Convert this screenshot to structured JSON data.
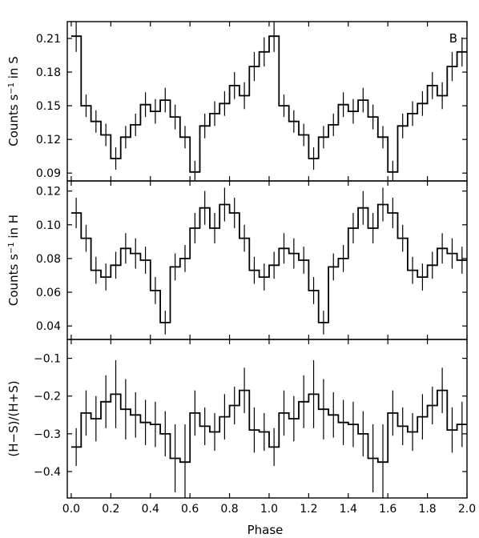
{
  "chart_data": [
    {
      "type": "line",
      "step": "histogram",
      "panel_label": "B",
      "ylabel": "Counts s$^{-1}$ in S",
      "ylabel_parts": [
        "Counts s",
        "−1",
        " in S"
      ],
      "ylim": [
        0.083,
        0.225
      ],
      "yticks": [
        0.09,
        0.12,
        0.15,
        0.18,
        0.21
      ],
      "ytick_labels": [
        "0.09",
        "0.12",
        "0.15",
        "0.18",
        "0.21"
      ],
      "bins": 40,
      "values": [
        0.212,
        0.15,
        0.136,
        0.124,
        0.103,
        0.122,
        0.133,
        0.151,
        0.145,
        0.155,
        0.14,
        0.122,
        0.091,
        0.132,
        0.143,
        0.152,
        0.168,
        0.159,
        0.185,
        0.198,
        0.212,
        0.15,
        0.136,
        0.124,
        0.103,
        0.122,
        0.133,
        0.151,
        0.145,
        0.155,
        0.14,
        0.122,
        0.091,
        0.132,
        0.143,
        0.152,
        0.168,
        0.159,
        0.185,
        0.198
      ],
      "errors": [
        0.014,
        0.01,
        0.01,
        0.01,
        0.01,
        0.01,
        0.01,
        0.011,
        0.011,
        0.011,
        0.011,
        0.01,
        0.01,
        0.011,
        0.011,
        0.011,
        0.012,
        0.012,
        0.013,
        0.013,
        0.014,
        0.01,
        0.01,
        0.01,
        0.01,
        0.01,
        0.01,
        0.011,
        0.011,
        0.011,
        0.011,
        0.01,
        0.01,
        0.011,
        0.011,
        0.011,
        0.012,
        0.012,
        0.013,
        0.013
      ]
    },
    {
      "type": "line",
      "step": "histogram",
      "ylabel": "Counts s$^{-1}$ in H",
      "ylabel_parts": [
        "Counts s",
        "−1",
        " in H"
      ],
      "ylim": [
        0.032,
        0.126
      ],
      "yticks": [
        0.04,
        0.06,
        0.08,
        0.1,
        0.12
      ],
      "ytick_labels": [
        "0.04",
        "0.06",
        "0.08",
        "0.10",
        "0.12"
      ],
      "bins": 40,
      "values": [
        0.107,
        0.092,
        0.073,
        0.069,
        0.076,
        0.086,
        0.083,
        0.079,
        0.061,
        0.042,
        0.075,
        0.08,
        0.098,
        0.11,
        0.098,
        0.112,
        0.107,
        0.092,
        0.073,
        0.069,
        0.076,
        0.086,
        0.083,
        0.079,
        0.061,
        0.042,
        0.075,
        0.08,
        0.098,
        0.11,
        0.098,
        0.112,
        0.107,
        0.092,
        0.073,
        0.069,
        0.076,
        0.086,
        0.083,
        0.079
      ],
      "errors": [
        0.009,
        0.008,
        0.008,
        0.008,
        0.008,
        0.009,
        0.009,
        0.008,
        0.008,
        0.007,
        0.008,
        0.008,
        0.009,
        0.01,
        0.009,
        0.01,
        0.009,
        0.008,
        0.008,
        0.008,
        0.008,
        0.009,
        0.009,
        0.008,
        0.008,
        0.007,
        0.008,
        0.008,
        0.009,
        0.01,
        0.009,
        0.01,
        0.009,
        0.008,
        0.008,
        0.008,
        0.008,
        0.009,
        0.009,
        0.008
      ]
    },
    {
      "type": "line",
      "step": "histogram",
      "ylabel": "(H−S)/(H+S)",
      "ylim": [
        -0.47,
        -0.05
      ],
      "yticks": [
        -0.4,
        -0.3,
        -0.2,
        -0.1
      ],
      "ytick_labels": [
        "−0.4",
        "−0.3",
        "−0.2",
        "−0.1"
      ],
      "xlabel": "Phase",
      "xlim": [
        -0.02,
        2.0
      ],
      "xticks": [
        0.0,
        0.2,
        0.4,
        0.6,
        0.8,
        1.0,
        1.2,
        1.4,
        1.6,
        1.8,
        2.0
      ],
      "xtick_labels": [
        "0.0",
        "0.2",
        "0.4",
        "0.6",
        "0.8",
        "1.0",
        "1.2",
        "1.4",
        "1.6",
        "1.8",
        "2.0"
      ],
      "bins": 40,
      "values": [
        -0.335,
        -0.245,
        -0.26,
        -0.215,
        -0.195,
        -0.235,
        -0.25,
        -0.27,
        -0.275,
        -0.3,
        -0.365,
        -0.375,
        -0.245,
        -0.28,
        -0.295,
        -0.255,
        -0.225,
        -0.185,
        -0.29,
        -0.295,
        -0.335,
        -0.245,
        -0.26,
        -0.215,
        -0.195,
        -0.235,
        -0.25,
        -0.27,
        -0.275,
        -0.3,
        -0.365,
        -0.375,
        -0.245,
        -0.28,
        -0.295,
        -0.255,
        -0.225,
        -0.185,
        -0.29,
        -0.275
      ],
      "errors": [
        0.05,
        0.06,
        0.06,
        0.07,
        0.09,
        0.08,
        0.06,
        0.06,
        0.06,
        0.06,
        0.09,
        0.1,
        0.06,
        0.05,
        0.05,
        0.06,
        0.05,
        0.06,
        0.06,
        0.05,
        0.05,
        0.06,
        0.06,
        0.07,
        0.09,
        0.08,
        0.06,
        0.06,
        0.06,
        0.06,
        0.09,
        0.1,
        0.06,
        0.05,
        0.05,
        0.06,
        0.05,
        0.06,
        0.06,
        0.06
      ]
    }
  ]
}
